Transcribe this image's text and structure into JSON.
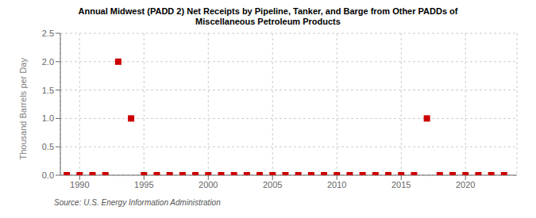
{
  "chart_data": {
    "type": "scatter",
    "title": "Annual Midwest (PADD 2) Net Receipts by Pipeline, Tanker, and Barge from Other PADDs of\nMiscellaneous Petroleum Products",
    "ylabel": "Thousand Barrels per Day",
    "annotations": [
      "Source: U.S. Energy Information Administration"
    ],
    "x": [
      1989,
      1990,
      1991,
      1992,
      1993,
      1994,
      1995,
      1996,
      1997,
      1998,
      1999,
      2000,
      2001,
      2002,
      2003,
      2004,
      2005,
      2006,
      2007,
      2008,
      2009,
      2010,
      2011,
      2012,
      2013,
      2014,
      2015,
      2016,
      2017,
      2018,
      2019,
      2020,
      2021,
      2022,
      2023
    ],
    "values": [
      0,
      0,
      0,
      0,
      2.0,
      1.0,
      0,
      0,
      0,
      0,
      0,
      0,
      0,
      0,
      0,
      0,
      0,
      0,
      0,
      0,
      0,
      0,
      0,
      0,
      0,
      0,
      0,
      0,
      1.0,
      0,
      0,
      0,
      0,
      0,
      0
    ],
    "color": "#cc0000",
    "marker": "square",
    "xlim": [
      1988.5,
      2024
    ],
    "ylim": [
      0,
      2.5
    ],
    "xticks": [
      1990,
      1995,
      2000,
      2005,
      2010,
      2015,
      2020
    ],
    "yticks": [
      {
        "value": 0,
        "label": "0.0"
      },
      0.5,
      {
        "value": 1,
        "label": "1.0"
      },
      1.5,
      {
        "value": 2,
        "label": "2.0"
      },
      2.5
    ],
    "grid": true
  }
}
